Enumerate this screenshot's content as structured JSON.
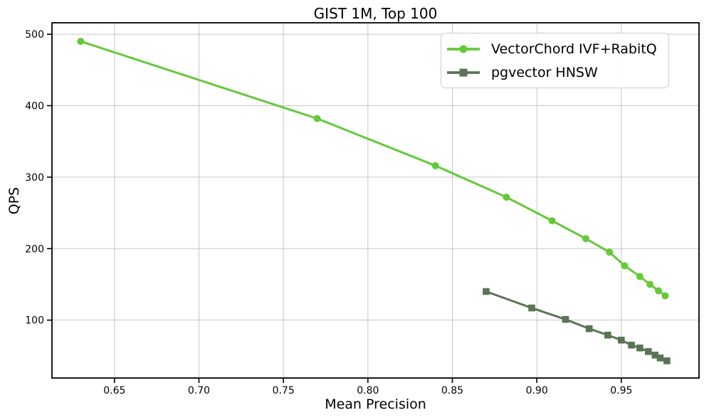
{
  "chart_data": {
    "type": "line",
    "title": "GIST 1M, Top 100",
    "xlabel": "Mean Precision",
    "ylabel": "QPS",
    "xlim": [
      0.613,
      0.996
    ],
    "ylim": [
      19,
      516
    ],
    "xticks": [
      0.65,
      0.7,
      0.75,
      0.8,
      0.85,
      0.9,
      0.95
    ],
    "xtick_labels": [
      "0.65",
      "0.70",
      "0.75",
      "0.80",
      "0.85",
      "0.90",
      "0.95"
    ],
    "yticks": [
      100,
      200,
      300,
      400,
      500
    ],
    "ytick_labels": [
      "100",
      "200",
      "300",
      "400",
      "500"
    ],
    "grid": true,
    "legend_position": "upper right",
    "series": [
      {
        "name": "VectorChord IVF+RabitQ",
        "color": "#65C93A",
        "marker": "circle",
        "x": [
          0.63,
          0.77,
          0.84,
          0.882,
          0.909,
          0.929,
          0.943,
          0.952,
          0.961,
          0.967,
          0.972,
          0.976
        ],
        "y": [
          490,
          382,
          316,
          272,
          239,
          214,
          195,
          176,
          161,
          150,
          141,
          134
        ]
      },
      {
        "name": "pgvector HNSW",
        "color": "#5A7456",
        "marker": "square",
        "x": [
          0.87,
          0.897,
          0.917,
          0.931,
          0.942,
          0.95,
          0.956,
          0.961,
          0.966,
          0.97,
          0.973,
          0.977
        ],
        "y": [
          140,
          117,
          101,
          88,
          79,
          72,
          65,
          61,
          56,
          51,
          47,
          43
        ]
      }
    ],
    "colors": {
      "grid": "#c6c6c6",
      "spine": "#000000",
      "text": "#000000",
      "legend_border": "#cccccc",
      "legend_bg": "#ffffff"
    }
  }
}
